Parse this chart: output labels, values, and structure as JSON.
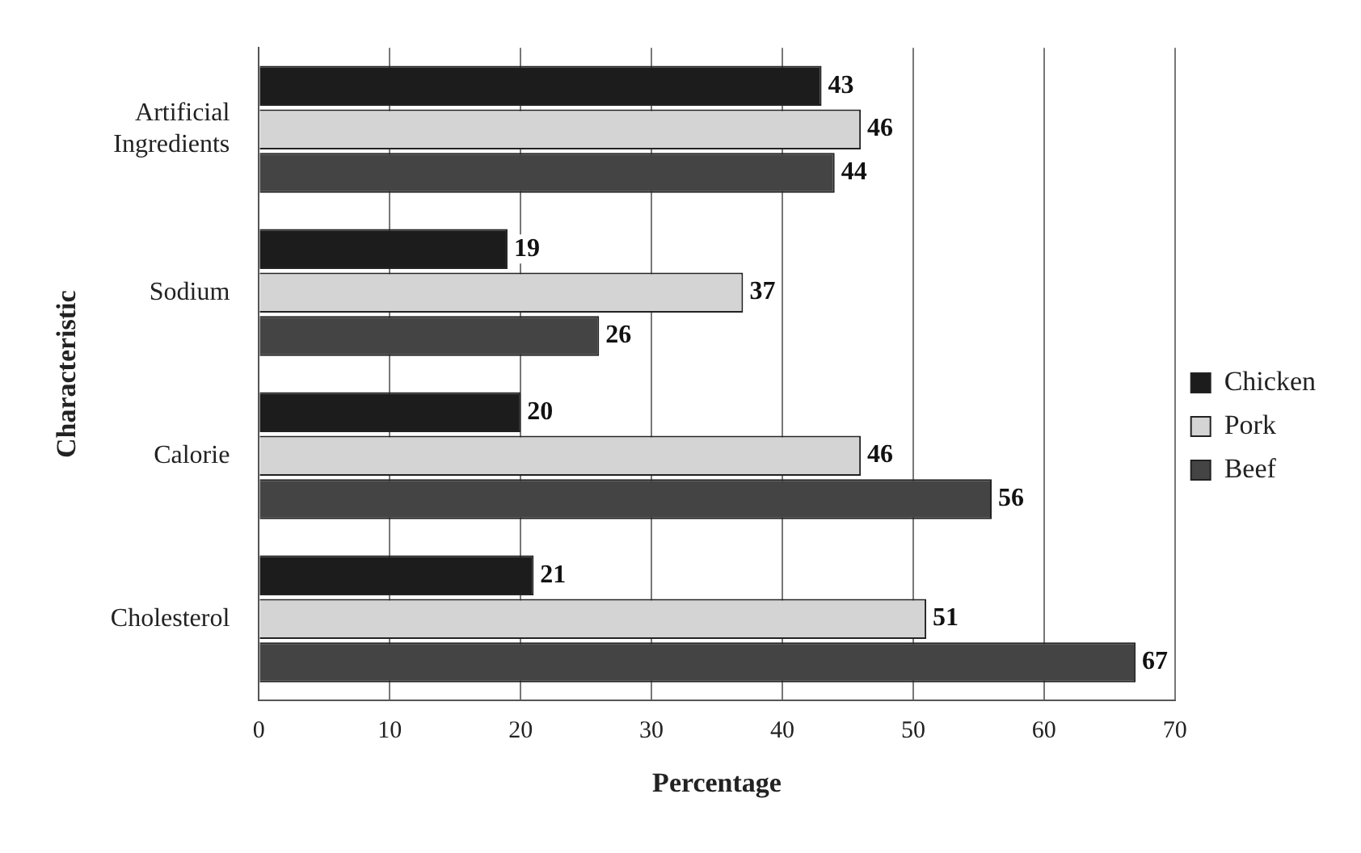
{
  "chart_data": {
    "type": "bar",
    "orientation": "horizontal",
    "xlabel": "Percentage",
    "ylabel": "Characteristic",
    "categories": [
      "Artificial Ingredients",
      "Sodium",
      "Calorie",
      "Cholesterol"
    ],
    "series": [
      {
        "name": "Chicken",
        "color": "#1c1c1c",
        "values": [
          43,
          19,
          20,
          21
        ]
      },
      {
        "name": "Pork",
        "color": "#d4d4d4",
        "values": [
          46,
          37,
          46,
          51
        ]
      },
      {
        "name": "Beef",
        "color": "#444444",
        "values": [
          44,
          26,
          56,
          67
        ]
      }
    ],
    "xlim": [
      0,
      70
    ],
    "xticks": [
      0,
      10,
      20,
      30,
      40,
      50,
      60,
      70
    ],
    "grid": "x",
    "legend": "right",
    "data_labels": true
  }
}
